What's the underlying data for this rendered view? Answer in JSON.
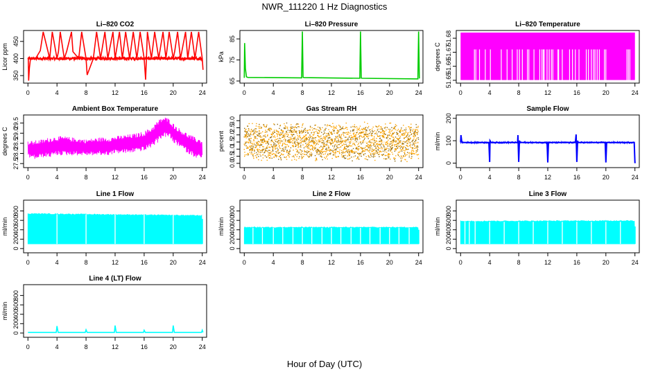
{
  "figure": {
    "title": "NWR_111220  1 Hz Diagnostics",
    "xlabel": "Hour of Day (UTC)"
  },
  "colors": {
    "co2": "#ff0000",
    "pressure": "#00cc00",
    "temperature": "#ff00ff",
    "box_temperature": "#ff00ff",
    "gas_rh": "#ffa500",
    "gas_rh_points": "#8b6914",
    "sample_flow": "#0000ff",
    "line_flow": "#00ffff"
  },
  "chart_data": [
    {
      "type": "line",
      "title": "Li–820 CO2",
      "ylabel": "Licor ppm",
      "color_key": "co2",
      "xlim": [
        -0.6,
        24.6
      ],
      "ylim": [
        328,
        482
      ],
      "xticks": [
        "0",
        "4",
        "8",
        "12",
        "16",
        "20",
        "24"
      ],
      "yticks": [
        {
          "v": 350,
          "label": "350"
        },
        {
          "v": 400,
          "label": "400"
        },
        {
          "v": 450,
          "label": "450"
        }
      ],
      "base": {
        "y": 400,
        "amp": 4
      },
      "series": {
        "x": [
          0.05,
          0.1,
          0.2,
          0.35,
          1.05,
          1.7,
          2.1,
          3.0,
          3.35,
          4.0,
          4.2,
          4.45,
          5.0,
          5.35,
          6.0,
          6.2,
          7.0,
          7.4,
          8.0,
          8.15,
          9.0,
          9.45,
          10.0,
          10.6,
          11.0,
          11.7,
          12.0,
          12.15,
          12.6,
          13.0,
          13.45,
          14.0,
          14.5,
          15.0,
          15.45,
          16.0,
          16.2,
          16.45,
          17.0,
          17.45,
          18.0,
          18.6,
          19.0,
          19.45,
          20.0,
          20.2,
          20.6,
          21.0,
          21.7,
          22.0,
          22.5,
          23.0,
          23.5,
          24.0,
          24.1
        ],
        "y": [
          400,
          335,
          372,
          400,
          400,
          423,
          478,
          400,
          478,
          400,
          420,
          478,
          400,
          422,
          478,
          420,
          400,
          478,
          400,
          352,
          400,
          478,
          400,
          478,
          400,
          478,
          400,
          420,
          478,
          400,
          478,
          400,
          478,
          400,
          478,
          400,
          338,
          478,
          400,
          478,
          400,
          478,
          400,
          478,
          400,
          420,
          478,
          400,
          478,
          400,
          478,
          400,
          478,
          400,
          367
        ]
      }
    },
    {
      "type": "line",
      "title": "Li–820 Pressure",
      "ylabel": "kPa",
      "color_key": "pressure",
      "xlim": [
        -0.6,
        24.6
      ],
      "ylim": [
        64,
        89
      ],
      "xticks": [
        "0",
        "4",
        "8",
        "12",
        "16",
        "20",
        "24"
      ],
      "yticks": [
        {
          "v": 65,
          "label": "65"
        },
        {
          "v": 75,
          "label": "75"
        },
        {
          "v": 85,
          "label": "85"
        }
      ],
      "series": {
        "x": [
          0,
          0.05,
          0.15,
          0.3,
          0.5,
          7.9,
          8.0,
          8.1,
          8.2,
          15.9,
          16.0,
          16.1,
          16.2,
          23.9,
          24.0,
          24.1
        ],
        "y": [
          66.5,
          83,
          71,
          67,
          66.7,
          66.5,
          88.5,
          66.8,
          66.6,
          66.3,
          88.5,
          66.4,
          66.3,
          66.0,
          88.5,
          66.2
        ]
      }
    },
    {
      "type": "line",
      "title": "Li–820 Temperature",
      "ylabel": "degrees C",
      "color_key": "temperature",
      "xlim": [
        -0.6,
        24.6
      ],
      "ylim": [
        51.648,
        51.6855
      ],
      "xticks": [
        "0",
        "4",
        "8",
        "12",
        "16",
        "20",
        "24"
      ],
      "yticks": [
        {
          "v": 51.65,
          "label": "51.65"
        },
        {
          "v": 51.66,
          "label": "51.66"
        },
        {
          "v": 51.67,
          "label": "51.67"
        },
        {
          "v": 51.68,
          "label": "51.68"
        }
      ],
      "band": {
        "lo": 51.6502,
        "hi": 51.684
      },
      "gaps": [
        1.9,
        2.1,
        2.6,
        3.4,
        4.1,
        5.6,
        6.4,
        7.1,
        7.8,
        8.1,
        8.5,
        9.2,
        9.4,
        10.1,
        10.9,
        11.2,
        11.4,
        11.5,
        11.9,
        12.2,
        12.5,
        12.7,
        13.4,
        13.5,
        14.0,
        15.0,
        15.4,
        15.8,
        16.3,
        17.3,
        17.6,
        18.0,
        18.3,
        18.5,
        18.8,
        19.1,
        19.8,
        20.0,
        22.9,
        23.1,
        23.3
      ],
      "gap_to": 51.672
    },
    {
      "type": "line",
      "title": "Ambient Box Temperature",
      "ylabel": "degrees C",
      "color_key": "box_temperature",
      "xlim": [
        -0.6,
        24.6
      ],
      "ylim": [
        27.3,
        29.9
      ],
      "xticks": [
        "0",
        "4",
        "8",
        "12",
        "16",
        "20",
        "24"
      ],
      "yticks": [
        {
          "v": 27.5,
          "label": "27.5"
        },
        {
          "v": 28.0,
          "label": "28.0"
        },
        {
          "v": 28.5,
          "label": "28.5"
        },
        {
          "v": 29.0,
          "label": "29.0"
        },
        {
          "v": 29.5,
          "label": "29.5"
        }
      ],
      "envelope": {
        "x": [
          0,
          1,
          2,
          3,
          4,
          5,
          6,
          7,
          8,
          9,
          10,
          11,
          12,
          13,
          14,
          15,
          16,
          17,
          17.8,
          18.5,
          19,
          19.5,
          20,
          21,
          22,
          23,
          24
        ],
        "lo": [
          27.8,
          27.7,
          27.8,
          27.8,
          27.9,
          27.9,
          27.9,
          27.9,
          27.9,
          27.9,
          27.9,
          27.9,
          28.0,
          28.0,
          28.0,
          28.1,
          28.1,
          28.3,
          28.5,
          28.8,
          28.8,
          28.8,
          28.5,
          28.3,
          28.0,
          27.8,
          27.7
        ],
        "hi": [
          28.6,
          28.65,
          28.7,
          28.8,
          28.85,
          28.85,
          28.8,
          28.75,
          28.7,
          28.75,
          28.8,
          28.8,
          28.85,
          28.9,
          28.95,
          29.0,
          29.1,
          29.3,
          29.6,
          29.8,
          29.8,
          29.7,
          29.5,
          29.2,
          29.0,
          28.8,
          28.7
        ]
      }
    },
    {
      "type": "scatter",
      "title": "Gas Stream RH",
      "ylabel": "percent",
      "color_key": "gas_rh",
      "xlim": [
        -0.6,
        24.6
      ],
      "ylim": [
        -0.3,
        3.4
      ],
      "xticks": [
        "0",
        "4",
        "8",
        "12",
        "16",
        "20",
        "24"
      ],
      "yticks": [
        {
          "v": 0.0,
          "label": "0.0"
        },
        {
          "v": 0.5,
          "label": "0.5"
        },
        {
          "v": 1.0,
          "label": "1.0"
        },
        {
          "v": 1.5,
          "label": "1.5"
        },
        {
          "v": 2.0,
          "label": "2.0"
        },
        {
          "v": 2.5,
          "label": "2.5"
        },
        {
          "v": 3.0,
          "label": "3.0"
        }
      ],
      "band": {
        "lo": 0.2,
        "hi": 2.7,
        "center": 1.5
      }
    },
    {
      "type": "line",
      "title": "Sample Flow",
      "ylabel": "ml/min",
      "color_key": "sample_flow",
      "xlim": [
        -0.6,
        24.6
      ],
      "ylim": [
        -20,
        215
      ],
      "xticks": [
        "0",
        "4",
        "8",
        "12",
        "16",
        "20",
        "24"
      ],
      "yticks": [
        {
          "v": 0,
          "label": "0"
        },
        {
          "v": 100,
          "label": "100"
        },
        {
          "v": 200,
          "label": "200"
        }
      ],
      "series": {
        "x": [
          0,
          0.05,
          0.15,
          0.3,
          3.9,
          4.0,
          4.05,
          4.2,
          7.85,
          7.9,
          8.0,
          8.1,
          8.2,
          11.9,
          12.0,
          12.1,
          15.8,
          15.9,
          16.0,
          16.1,
          16.2,
          19.9,
          20.0,
          20.1,
          23.9,
          24.0,
          24.1
        ],
        "y": [
          93,
          125,
          97,
          92,
          92,
          5,
          100,
          92,
          92,
          125,
          5,
          100,
          92,
          92,
          3,
          92,
          92,
          128,
          5,
          100,
          92,
          92,
          3,
          92,
          92,
          3,
          3
        ]
      }
    },
    {
      "type": "area",
      "title": "Line 1 Flow",
      "ylabel": "ml/min",
      "color_key": "line_flow",
      "xlim": [
        -0.6,
        24.6
      ],
      "ylim": [
        -90,
        1030
      ],
      "xticks": [
        "0",
        "4",
        "8",
        "12",
        "16",
        "20",
        "24"
      ],
      "yticks": [
        {
          "v": 0,
          "label": "0"
        },
        {
          "v": 200,
          "label": "200"
        },
        {
          "v": 400,
          "label": "400"
        },
        {
          "v": 600,
          "label": "600"
        },
        {
          "v": 800,
          "label": "800"
        }
      ],
      "band": {
        "lo": 100,
        "hi_start": 740,
        "hi_end": 700
      },
      "gaps": [
        4.0,
        8.0,
        12.0,
        16.0,
        20.0
      ],
      "end": {
        "x": 24.0,
        "y": 630
      }
    },
    {
      "type": "area",
      "title": "Line 2 Flow",
      "ylabel": "ml/min",
      "color_key": "line_flow",
      "xlim": [
        -0.6,
        24.6
      ],
      "ylim": [
        -90,
        1030
      ],
      "xticks": [
        "0",
        "4",
        "8",
        "12",
        "16",
        "20",
        "24"
      ],
      "yticks": [
        {
          "v": 0,
          "label": "0"
        },
        {
          "v": 200,
          "label": "200"
        },
        {
          "v": 400,
          "label": "400"
        },
        {
          "v": 600,
          "label": "600"
        },
        {
          "v": 800,
          "label": "800"
        }
      ],
      "band": {
        "lo": 100,
        "hi_start": 450,
        "hi_end": 450
      },
      "gaps": [
        1.2,
        2.5,
        4.0,
        5.3,
        6.7,
        8.0,
        9.3,
        10.7,
        12.0,
        13.3,
        14.7,
        16.0,
        17.3,
        18.7,
        20.0,
        21.3,
        22.7
      ],
      "end": {
        "x": 24.0,
        "y": 400
      }
    },
    {
      "type": "area",
      "title": "Line 3 Flow",
      "ylabel": "ml/min",
      "color_key": "line_flow",
      "xlim": [
        -0.6,
        24.6
      ],
      "ylim": [
        -90,
        1030
      ],
      "xticks": [
        "0",
        "4",
        "8",
        "12",
        "16",
        "20",
        "24"
      ],
      "yticks": [
        {
          "v": 0,
          "label": "0"
        },
        {
          "v": 200,
          "label": "200"
        },
        {
          "v": 400,
          "label": "400"
        },
        {
          "v": 600,
          "label": "600"
        },
        {
          "v": 800,
          "label": "800"
        }
      ],
      "band": {
        "lo": 100,
        "hi_start": 580,
        "hi_end": 590
      },
      "gaps": [
        0.6,
        1.2,
        2.0,
        4.0,
        6.0,
        8.0,
        10.0,
        12.0,
        14.0,
        16.0,
        18.0,
        20.0,
        22.0
      ],
      "end": {
        "x": 24.0,
        "y": 470
      }
    },
    {
      "type": "line",
      "title": "Line 4 (LT) Flow",
      "ylabel": "ml/min",
      "color_key": "line_flow",
      "xlim": [
        -0.6,
        24.6
      ],
      "ylim": [
        -90,
        1030
      ],
      "xticks": [
        "0",
        "4",
        "8",
        "12",
        "16",
        "20",
        "24"
      ],
      "yticks": [
        {
          "v": 0,
          "label": "0"
        },
        {
          "v": 200,
          "label": "200"
        },
        {
          "v": 400,
          "label": "400"
        },
        {
          "v": 600,
          "label": "600"
        },
        {
          "v": 800,
          "label": "800"
        }
      ],
      "series": {
        "x": [
          0,
          3.9,
          4.0,
          4.15,
          7.9,
          8.0,
          8.15,
          11.9,
          12.0,
          12.15,
          15.9,
          16.0,
          16.15,
          19.9,
          20.0,
          20.15,
          23.9,
          24.0,
          24.1
        ],
        "y": [
          15,
          15,
          150,
          15,
          15,
          70,
          15,
          15,
          160,
          15,
          15,
          60,
          15,
          15,
          160,
          15,
          15,
          60,
          15
        ]
      }
    }
  ]
}
